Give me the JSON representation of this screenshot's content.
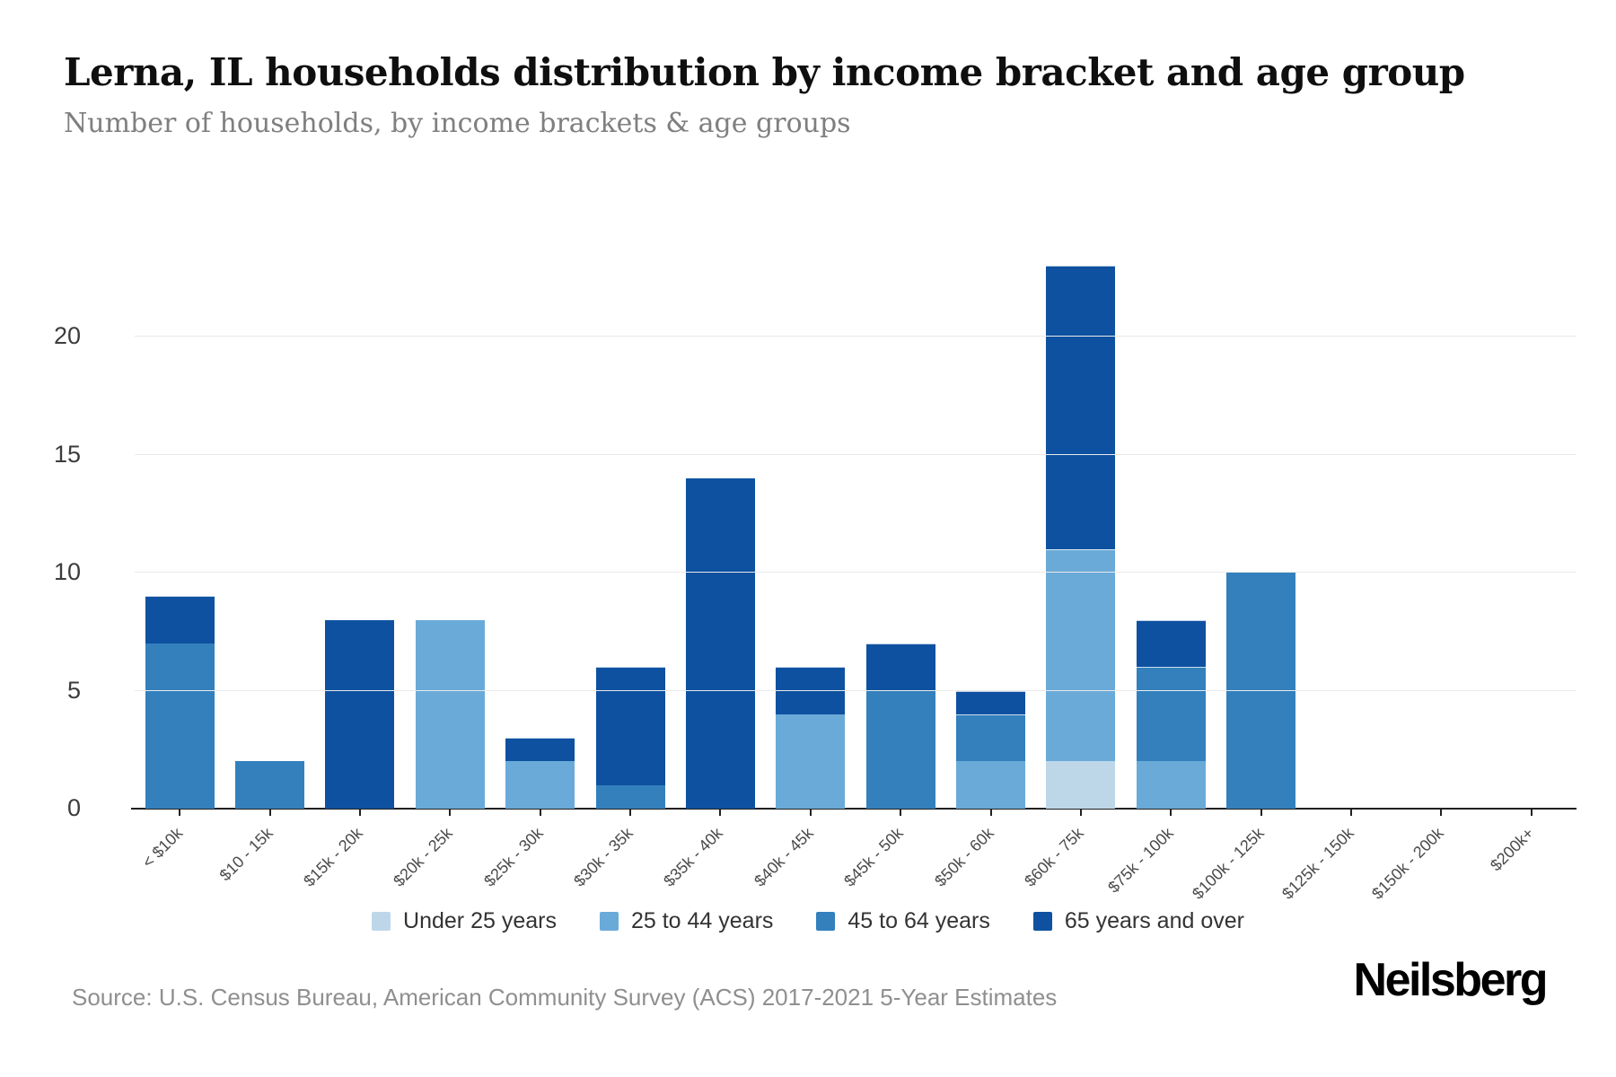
{
  "header": {
    "title": "Lerna, IL households distribution by income bracket and age group",
    "subtitle": "Number of households, by income brackets & age groups"
  },
  "chart_data": {
    "type": "bar",
    "stacked": true,
    "title": "Lerna, IL households distribution by income bracket and age group",
    "subtitle": "Number of households, by income brackets & age groups",
    "xlabel": "",
    "ylabel": "",
    "grid": true,
    "legend_position": "bottom",
    "ylim": [
      0,
      23
    ],
    "yticks": [
      0,
      5,
      10,
      15,
      20
    ],
    "categories": [
      "< $10k",
      "$10 - 15k",
      "$15k - 20k",
      "$20k - 25k",
      "$25k - 30k",
      "$30k - 35k",
      "$35k - 40k",
      "$40k - 45k",
      "$45k - 50k",
      "$50k - 60k",
      "$60k - 75k",
      "$75k - 100k",
      "$100k - 125k",
      "$125k - 150k",
      "$150k - 200k",
      "$200k+"
    ],
    "series": [
      {
        "name": "Under 25 years",
        "color": "#bdd7e9",
        "values": [
          0,
          0,
          0,
          0,
          0,
          0,
          0,
          0,
          0,
          0,
          2,
          0,
          0,
          0,
          0,
          0
        ]
      },
      {
        "name": "25 to 44 years",
        "color": "#6aaad8",
        "values": [
          0,
          0,
          0,
          8,
          2,
          0,
          0,
          4,
          0,
          2,
          9,
          2,
          0,
          0,
          0,
          0
        ]
      },
      {
        "name": "45 to 64 years",
        "color": "#3380bd",
        "values": [
          7,
          2,
          0,
          0,
          0,
          1,
          0,
          0,
          5,
          2,
          0,
          4,
          10,
          0,
          0,
          0
        ]
      },
      {
        "name": "65 years and over",
        "color": "#0e51a0",
        "values": [
          2,
          0,
          8,
          0,
          1,
          5,
          14,
          2,
          2,
          1,
          12,
          2,
          0,
          0,
          0,
          0
        ]
      }
    ],
    "bar_totals": [
      9,
      2,
      8,
      8,
      3,
      6,
      14,
      6,
      7,
      5,
      23,
      8,
      10,
      0,
      0,
      0
    ]
  },
  "footer": {
    "source": "Source: U.S. Census Bureau, American Community Survey (ACS) 2017-2021 5-Year Estimates",
    "brand": "Neilsberg"
  }
}
